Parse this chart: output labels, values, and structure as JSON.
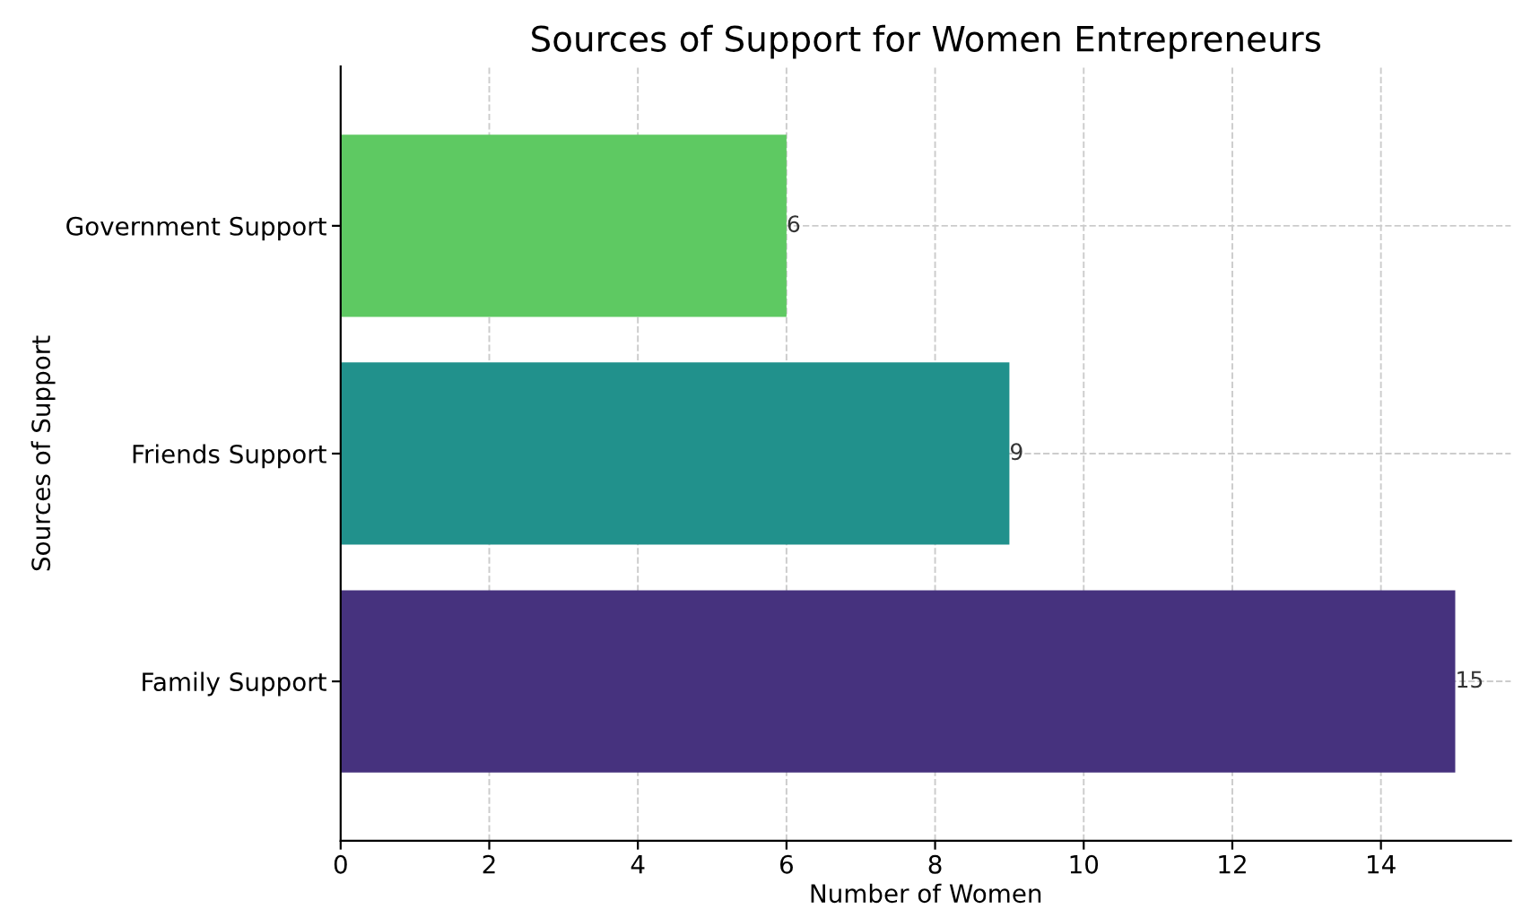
{
  "chart_data": {
    "type": "bar",
    "orientation": "horizontal",
    "title": "Sources of Support for Women Entrepreneurs",
    "xlabel": "Number of Women",
    "ylabel": "Sources of Support",
    "categories": [
      "Government Support",
      "Friends Support",
      "Family Support"
    ],
    "values": [
      6,
      9,
      15
    ],
    "colors": [
      "#5ec962",
      "#21918c",
      "#46327e"
    ],
    "xlim": [
      0,
      15.75
    ],
    "xticks": [
      0,
      2,
      4,
      6,
      8,
      10,
      12,
      14
    ],
    "grid": true,
    "data_labels": true
  }
}
